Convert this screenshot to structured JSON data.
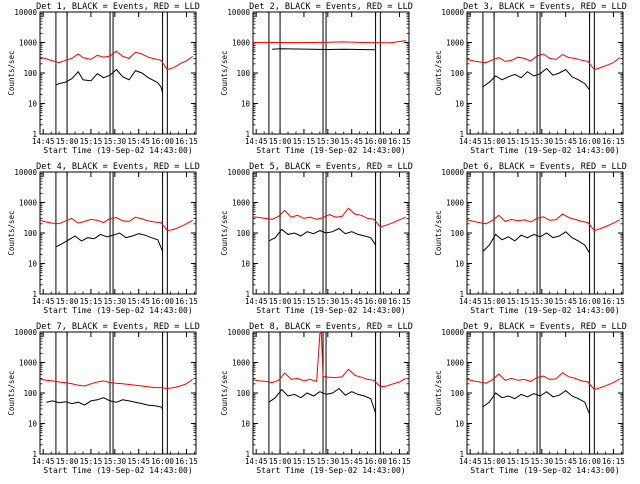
{
  "colors": {
    "events": "#000000",
    "lld": "#ff0000",
    "background": "#ffffff",
    "axes": "#000000"
  },
  "shared": {
    "xlabel": "Start Time (19-Sep-02 14:43:00)",
    "ylabel": "Counts/sec",
    "x_tick_labels": [
      "14:45",
      "15:00",
      "15:15",
      "15:30",
      "15:45",
      "16:00",
      "16:15"
    ],
    "y_tick_labels": [
      "1",
      "10",
      "100",
      "1000",
      "10000"
    ]
  },
  "chart_data": [
    {
      "type": "line",
      "title": "Det 1, BLACK = Events, RED = LLD",
      "xlabel": "Start Time (19-Sep-02 14:43:00)",
      "ylabel": "Counts/sec",
      "y_scale": "log",
      "ylim": [
        1,
        10000
      ],
      "xlim": [
        "14:43",
        "16:21"
      ],
      "series": [
        {
          "name": "Events",
          "color": "#000000",
          "x": [
            "14:53",
            "14:55",
            "14:59",
            "15:03",
            "15:07",
            "15:10",
            "15:15",
            "15:19",
            "15:23",
            "15:27",
            "15:31",
            "15:35",
            "15:39",
            "15:43",
            "15:47",
            "15:51",
            "15:55",
            "15:57",
            "15:59",
            "16:00"
          ],
          "values": [
            40,
            45,
            50,
            65,
            110,
            60,
            55,
            95,
            70,
            85,
            130,
            75,
            60,
            120,
            100,
            70,
            55,
            48,
            35,
            22
          ]
        },
        {
          "name": "LLD",
          "color": "#ff0000",
          "x": [
            "14:43",
            "14:47",
            "14:51",
            "14:55",
            "14:59",
            "15:03",
            "15:07",
            "15:10",
            "15:15",
            "15:19",
            "15:23",
            "15:27",
            "15:31",
            "15:35",
            "15:39",
            "15:43",
            "15:47",
            "15:51",
            "15:55",
            "15:59",
            "16:03",
            "16:07",
            "16:11",
            "16:15",
            "16:19"
          ],
          "values": [
            330,
            290,
            250,
            220,
            260,
            300,
            420,
            320,
            280,
            380,
            330,
            360,
            520,
            350,
            300,
            480,
            420,
            330,
            290,
            260,
            130,
            150,
            200,
            250,
            350
          ]
        }
      ]
    },
    {
      "type": "line",
      "title": "Det 2, BLACK = Events, RED = LLD",
      "xlabel": "Start Time (19-Sep-02 14:43:00)",
      "ylabel": "Counts/sec",
      "y_scale": "log",
      "ylim": [
        1,
        10000
      ],
      "xlim": [
        "14:43",
        "16:21"
      ],
      "series": [
        {
          "name": "Events",
          "color": "#000000",
          "x": [
            "14:55",
            "15:00",
            "15:10",
            "15:20",
            "15:30",
            "15:40",
            "15:50",
            "16:00"
          ],
          "values": [
            600,
            620,
            610,
            600,
            590,
            600,
            590,
            580
          ]
        },
        {
          "name": "LLD",
          "color": "#ff0000",
          "x": [
            "14:43",
            "14:50",
            "15:00",
            "15:10",
            "15:20",
            "15:30",
            "15:40",
            "15:50",
            "16:00",
            "16:10",
            "16:19"
          ],
          "values": [
            1000,
            1010,
            1000,
            990,
            1000,
            1020,
            1050,
            1010,
            980,
            990,
            1150
          ]
        }
      ]
    },
    {
      "type": "line",
      "title": "Det 3, BLACK = Events, RED = LLD",
      "xlabel": "Start Time (19-Sep-02 14:43:00)",
      "ylabel": "Counts/sec",
      "y_scale": "log",
      "ylim": [
        1,
        10000
      ],
      "xlim": [
        "14:43",
        "16:21"
      ],
      "series": [
        {
          "name": "Events",
          "color": "#000000",
          "x": [
            "14:53",
            "14:57",
            "15:01",
            "15:05",
            "15:09",
            "15:13",
            "15:17",
            "15:21",
            "15:25",
            "15:29",
            "15:33",
            "15:37",
            "15:41",
            "15:45",
            "15:49",
            "15:53",
            "15:57",
            "16:00"
          ],
          "values": [
            35,
            50,
            80,
            60,
            75,
            90,
            70,
            110,
            80,
            95,
            140,
            85,
            100,
            130,
            75,
            60,
            45,
            28
          ]
        },
        {
          "name": "LLD",
          "color": "#ff0000",
          "x": [
            "14:43",
            "14:47",
            "14:51",
            "14:55",
            "14:59",
            "15:03",
            "15:07",
            "15:11",
            "15:15",
            "15:19",
            "15:23",
            "15:27",
            "15:31",
            "15:35",
            "15:39",
            "15:43",
            "15:47",
            "15:51",
            "15:55",
            "15:59",
            "16:03",
            "16:07",
            "16:11",
            "16:15",
            "16:19"
          ],
          "values": [
            280,
            250,
            230,
            220,
            270,
            320,
            240,
            260,
            330,
            300,
            250,
            360,
            420,
            300,
            280,
            400,
            320,
            300,
            260,
            240,
            130,
            150,
            180,
            220,
            320
          ]
        }
      ]
    },
    {
      "type": "line",
      "title": "Det 4, BLACK = Events, RED = LLD",
      "xlabel": "Start Time (19-Sep-02 14:43:00)",
      "ylabel": "Counts/sec",
      "y_scale": "log",
      "ylim": [
        1,
        10000
      ],
      "xlim": [
        "14:43",
        "16:21"
      ],
      "series": [
        {
          "name": "Events",
          "color": "#000000",
          "x": [
            "14:53",
            "14:57",
            "15:01",
            "15:05",
            "15:09",
            "15:13",
            "15:17",
            "15:21",
            "15:25",
            "15:29",
            "15:33",
            "15:37",
            "15:41",
            "15:45",
            "15:49",
            "15:53",
            "15:57",
            "16:00"
          ],
          "values": [
            35,
            45,
            60,
            80,
            55,
            70,
            65,
            90,
            75,
            85,
            100,
            70,
            80,
            95,
            85,
            70,
            60,
            25
          ]
        },
        {
          "name": "LLD",
          "color": "#ff0000",
          "x": [
            "14:43",
            "14:47",
            "14:51",
            "14:55",
            "14:59",
            "15:03",
            "15:07",
            "15:11",
            "15:15",
            "15:19",
            "15:23",
            "15:27",
            "15:31",
            "15:35",
            "15:39",
            "15:43",
            "15:47",
            "15:51",
            "15:55",
            "15:59",
            "16:03",
            "16:07",
            "16:11",
            "16:15",
            "16:19"
          ],
          "values": [
            260,
            230,
            210,
            200,
            250,
            300,
            210,
            240,
            280,
            260,
            220,
            300,
            320,
            250,
            240,
            330,
            290,
            250,
            230,
            220,
            120,
            130,
            160,
            200,
            260
          ]
        }
      ]
    },
    {
      "type": "line",
      "title": "Det 5, BLACK = Events, RED = LLD",
      "xlabel": "Start Time (19-Sep-02 14:43:00)",
      "ylabel": "Counts/sec",
      "y_scale": "log",
      "ylim": [
        1,
        10000
      ],
      "xlim": [
        "14:43",
        "16:21"
      ],
      "series": [
        {
          "name": "Events",
          "color": "#000000",
          "x": [
            "14:53",
            "14:57",
            "15:01",
            "15:05",
            "15:09",
            "15:13",
            "15:17",
            "15:21",
            "15:25",
            "15:29",
            "15:33",
            "15:37",
            "15:41",
            "15:45",
            "15:49",
            "15:53",
            "15:57",
            "16:00"
          ],
          "values": [
            55,
            70,
            130,
            90,
            100,
            80,
            110,
            95,
            120,
            100,
            110,
            140,
            95,
            110,
            90,
            80,
            70,
            40
          ]
        },
        {
          "name": "LLD",
          "color": "#ff0000",
          "x": [
            "14:43",
            "14:47",
            "14:51",
            "14:55",
            "14:59",
            "15:03",
            "15:07",
            "15:11",
            "15:15",
            "15:19",
            "15:23",
            "15:27",
            "15:31",
            "15:35",
            "15:39",
            "15:43",
            "15:47",
            "15:51",
            "15:55",
            "15:59",
            "16:03",
            "16:07",
            "16:11",
            "16:15",
            "16:19"
          ],
          "values": [
            340,
            320,
            300,
            280,
            350,
            550,
            330,
            380,
            300,
            330,
            280,
            320,
            400,
            330,
            350,
            650,
            420,
            380,
            300,
            280,
            160,
            180,
            220,
            270,
            330
          ]
        }
      ]
    },
    {
      "type": "line",
      "title": "Det 6, BLACK = Events, RED = LLD",
      "xlabel": "Start Time (19-Sep-02 14:43:00)",
      "ylabel": "Counts/sec",
      "y_scale": "log",
      "ylim": [
        1,
        10000
      ],
      "xlim": [
        "14:43",
        "16:21"
      ],
      "series": [
        {
          "name": "Events",
          "color": "#000000",
          "x": [
            "14:53",
            "14:57",
            "15:01",
            "15:05",
            "15:09",
            "15:13",
            "15:17",
            "15:21",
            "15:25",
            "15:29",
            "15:33",
            "15:37",
            "15:41",
            "15:45",
            "15:49",
            "15:53",
            "15:57",
            "16:00"
          ],
          "values": [
            25,
            40,
            90,
            60,
            75,
            55,
            85,
            70,
            90,
            75,
            100,
            70,
            80,
            110,
            70,
            55,
            40,
            22
          ]
        },
        {
          "name": "LLD",
          "color": "#ff0000",
          "x": [
            "14:43",
            "14:47",
            "14:51",
            "14:55",
            "14:59",
            "15:03",
            "15:07",
            "15:11",
            "15:15",
            "15:19",
            "15:23",
            "15:27",
            "15:31",
            "15:35",
            "15:39",
            "15:43",
            "15:47",
            "15:51",
            "15:55",
            "15:59",
            "16:03",
            "16:07",
            "16:11",
            "16:15",
            "16:19"
          ],
          "values": [
            270,
            240,
            220,
            200,
            260,
            380,
            240,
            280,
            250,
            270,
            230,
            300,
            340,
            260,
            270,
            420,
            320,
            280,
            240,
            220,
            120,
            140,
            170,
            210,
            270
          ]
        }
      ]
    },
    {
      "type": "line",
      "title": "Det 7, BLACK = Events, RED = LLD",
      "xlabel": "Start Time (19-Sep-02 14:43:00)",
      "ylabel": "Counts/sec",
      "y_scale": "log",
      "ylim": [
        1,
        10000
      ],
      "xlim": [
        "14:43",
        "16:21"
      ],
      "series": [
        {
          "name": "Events",
          "color": "#000000",
          "x": [
            "14:47",
            "14:51",
            "14:55",
            "14:59",
            "15:03",
            "15:07",
            "15:11",
            "15:15",
            "15:19",
            "15:23",
            "15:27",
            "15:31",
            "15:35",
            "15:39",
            "15:43",
            "15:47",
            "15:51",
            "15:55",
            "15:59",
            "16:00"
          ],
          "values": [
            50,
            55,
            48,
            52,
            45,
            50,
            40,
            55,
            60,
            70,
            55,
            50,
            60,
            55,
            50,
            45,
            40,
            38,
            35,
            30
          ]
        },
        {
          "name": "LLD",
          "color": "#ff0000",
          "x": [
            "14:43",
            "14:47",
            "14:51",
            "14:55",
            "14:59",
            "15:03",
            "15:07",
            "15:11",
            "15:15",
            "15:19",
            "15:23",
            "15:27",
            "15:31",
            "15:35",
            "15:39",
            "15:43",
            "15:47",
            "15:51",
            "15:55",
            "15:59",
            "16:03",
            "16:07",
            "16:11",
            "16:15",
            "16:19"
          ],
          "values": [
            280,
            260,
            250,
            230,
            220,
            200,
            180,
            170,
            200,
            230,
            250,
            220,
            210,
            200,
            190,
            180,
            170,
            160,
            150,
            150,
            140,
            150,
            170,
            200,
            280
          ]
        }
      ]
    },
    {
      "type": "line",
      "title": "Det 8, BLACK = Events, RED = LLD",
      "xlabel": "Start Time (19-Sep-02 14:43:00)",
      "ylabel": "Counts/sec",
      "y_scale": "log",
      "ylim": [
        1,
        10000
      ],
      "xlim": [
        "14:43",
        "16:21"
      ],
      "series": [
        {
          "name": "Events",
          "color": "#000000",
          "x": [
            "14:53",
            "14:57",
            "15:01",
            "15:05",
            "15:09",
            "15:13",
            "15:17",
            "15:21",
            "15:25",
            "15:29",
            "15:33",
            "15:37",
            "15:41",
            "15:45",
            "15:49",
            "15:53",
            "15:57",
            "16:00"
          ],
          "values": [
            50,
            70,
            130,
            80,
            90,
            70,
            100,
            80,
            110,
            90,
            100,
            140,
            85,
            110,
            90,
            80,
            65,
            22
          ]
        },
        {
          "name": "LLD",
          "color": "#ff0000",
          "x": [
            "14:43",
            "14:47",
            "14:51",
            "14:55",
            "14:59",
            "15:03",
            "15:07",
            "15:11",
            "15:15",
            "15:19",
            "15:23",
            "15:25",
            "15:26",
            "15:27",
            "15:31",
            "15:35",
            "15:39",
            "15:43",
            "15:47",
            "15:51",
            "15:55",
            "15:59",
            "16:03",
            "16:07",
            "16:11",
            "16:15",
            "16:19"
          ],
          "values": [
            270,
            250,
            240,
            220,
            260,
            450,
            280,
            300,
            250,
            280,
            240,
            9000,
            9200,
            350,
            330,
            320,
            340,
            600,
            380,
            330,
            280,
            260,
            160,
            170,
            200,
            230,
            300
          ]
        }
      ]
    },
    {
      "type": "line",
      "title": "Det 9, BLACK = Events, RED = LLD",
      "xlabel": "Start Time (19-Sep-02 14:43:00)",
      "ylabel": "Counts/sec",
      "y_scale": "log",
      "ylim": [
        1,
        10000
      ],
      "xlim": [
        "14:43",
        "16:21"
      ],
      "series": [
        {
          "name": "Events",
          "color": "#000000",
          "x": [
            "14:53",
            "14:57",
            "15:01",
            "15:05",
            "15:09",
            "15:13",
            "15:17",
            "15:21",
            "15:25",
            "15:29",
            "15:33",
            "15:37",
            "15:41",
            "15:45",
            "15:49",
            "15:53",
            "15:57",
            "16:00"
          ],
          "values": [
            35,
            50,
            100,
            70,
            80,
            65,
            90,
            75,
            95,
            80,
            110,
            75,
            85,
            120,
            80,
            65,
            50,
            20
          ]
        },
        {
          "name": "LLD",
          "color": "#ff0000",
          "x": [
            "14:43",
            "14:47",
            "14:51",
            "14:55",
            "14:59",
            "15:03",
            "15:07",
            "15:11",
            "15:15",
            "15:19",
            "15:23",
            "15:27",
            "15:31",
            "15:35",
            "15:39",
            "15:43",
            "15:47",
            "15:51",
            "15:55",
            "15:59",
            "16:03",
            "16:07",
            "16:11",
            "16:15",
            "16:19"
          ],
          "values": [
            280,
            250,
            230,
            210,
            270,
            420,
            260,
            300,
            260,
            280,
            240,
            320,
            360,
            280,
            290,
            460,
            340,
            300,
            250,
            230,
            130,
            150,
            180,
            220,
            290
          ]
        }
      ]
    }
  ]
}
